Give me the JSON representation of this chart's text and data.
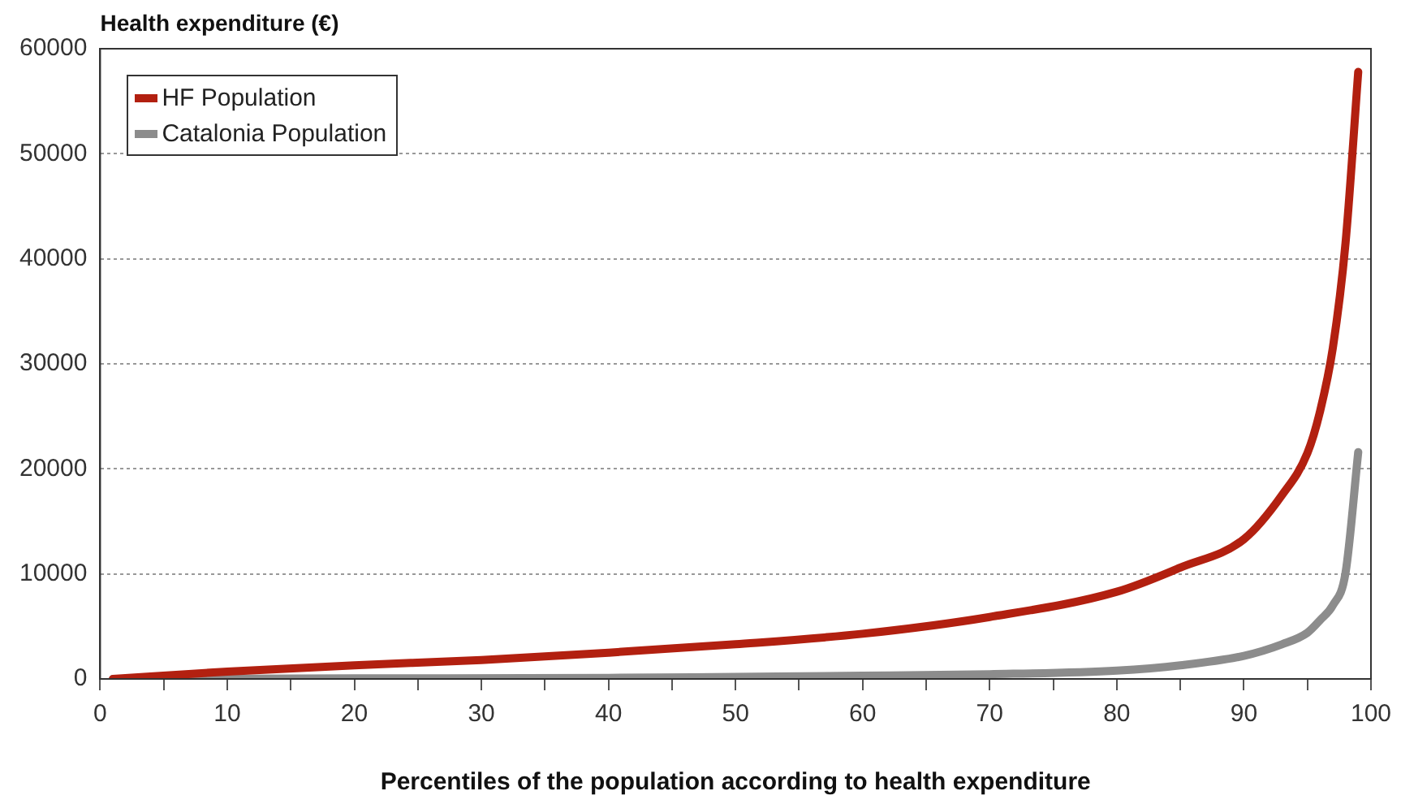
{
  "chart_data": {
    "type": "line",
    "xlabel": "Percentiles of the population according to health expenditure",
    "ylabel": "Health expenditure (€)",
    "xlim": [
      0,
      100
    ],
    "xticks": [
      0,
      {
        "value": 5,
        "label": null
      },
      10,
      {
        "value": 15,
        "label": null
      },
      20,
      {
        "value": 25,
        "label": null
      },
      30,
      {
        "value": 35,
        "label": null
      },
      40,
      {
        "value": 45,
        "label": null
      },
      50,
      {
        "value": 55,
        "label": null
      },
      60,
      {
        "value": 65,
        "label": null
      },
      70,
      {
        "value": 75,
        "label": null
      },
      80,
      {
        "value": 85,
        "label": null
      },
      90,
      {
        "value": 95,
        "label": null
      },
      100
    ],
    "ylim": [
      0,
      60000
    ],
    "yticks": [
      0,
      10000,
      20000,
      30000,
      40000,
      50000,
      60000
    ],
    "grid": "y",
    "legend": "top left",
    "marker": "none",
    "line_style": "solid",
    "series": [
      {
        "name": "HF Population",
        "color": "#b22010",
        "x": [
          1,
          10,
          20,
          30,
          40,
          50,
          60,
          70,
          80,
          85,
          90,
          93,
          95,
          96,
          97,
          98,
          99
        ],
        "values": [
          0,
          700,
          1300,
          1800,
          2500,
          3300,
          4300,
          5900,
          8300,
          10600,
          13300,
          17500,
          21500,
          25500,
          31500,
          41500,
          57800
        ]
      },
      {
        "name": "Catalonia Population",
        "color": "#8c8c8c",
        "x": [
          1,
          20,
          40,
          50,
          60,
          70,
          80,
          85,
          90,
          93,
          95,
          96,
          97,
          98,
          99
        ],
        "values": [
          0,
          50,
          100,
          200,
          300,
          450,
          800,
          1300,
          2200,
          3300,
          4400,
          5600,
          7000,
          10100,
          21600
        ]
      }
    ]
  }
}
